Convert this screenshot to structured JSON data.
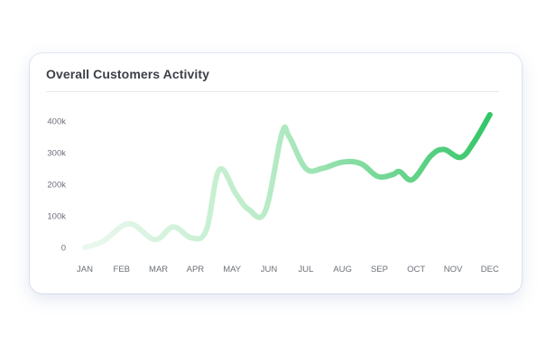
{
  "card": {
    "title": "Overall Customers Activity"
  },
  "chart_data": {
    "type": "line",
    "title": "Overall Customers Activity",
    "xlabel": "",
    "ylabel": "",
    "x": [
      "JAN",
      "FEB",
      "MAR",
      "APR",
      "MAY",
      "JUN",
      "JUL",
      "AUG",
      "SEP",
      "OCT",
      "NOV",
      "DEC"
    ],
    "y_ticks": [
      "0",
      "100k",
      "200k",
      "300k",
      "400k"
    ],
    "ylim": [
      0,
      400000
    ],
    "grid": false,
    "line_colors": [
      "#edf9f0",
      "#2fc465"
    ],
    "series": [
      {
        "points": [
          {
            "x": 0.0,
            "y": 0
          },
          {
            "x": 0.5,
            "y": 20000
          },
          {
            "x": 1.2,
            "y": 75000
          },
          {
            "x": 1.9,
            "y": 25000
          },
          {
            "x": 2.4,
            "y": 65000
          },
          {
            "x": 2.9,
            "y": 30000
          },
          {
            "x": 3.3,
            "y": 55000
          },
          {
            "x": 3.65,
            "y": 245000
          },
          {
            "x": 4.1,
            "y": 170000
          },
          {
            "x": 4.45,
            "y": 120000
          },
          {
            "x": 4.9,
            "y": 115000
          },
          {
            "x": 5.35,
            "y": 360000
          },
          {
            "x": 5.55,
            "y": 350000
          },
          {
            "x": 6.0,
            "y": 250000
          },
          {
            "x": 6.45,
            "y": 250000
          },
          {
            "x": 7.0,
            "y": 270000
          },
          {
            "x": 7.5,
            "y": 265000
          },
          {
            "x": 7.95,
            "y": 225000
          },
          {
            "x": 8.35,
            "y": 230000
          },
          {
            "x": 8.55,
            "y": 240000
          },
          {
            "x": 8.9,
            "y": 215000
          },
          {
            "x": 9.4,
            "y": 290000
          },
          {
            "x": 9.75,
            "y": 310000
          },
          {
            "x": 10.2,
            "y": 285000
          },
          {
            "x": 10.55,
            "y": 330000
          },
          {
            "x": 11.0,
            "y": 420000
          }
        ]
      }
    ]
  }
}
